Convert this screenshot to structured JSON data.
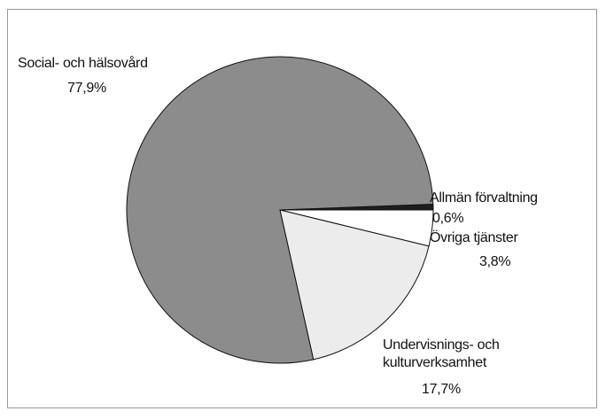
{
  "chart_data": {
    "type": "pie",
    "categories": [
      "Allmän förvaltning",
      "Övriga tjänster",
      "Undervisnings- och kulturverksamhet",
      "Social- och hälsovård"
    ],
    "values": [
      0.6,
      3.8,
      17.7,
      77.9
    ],
    "value_labels": [
      "0,6%",
      "3,8%",
      "17,7%",
      "77,9%"
    ],
    "colors": [
      "#1e1e1e",
      "#ffffff",
      "#ececec",
      "#8c8c8c"
    ]
  }
}
